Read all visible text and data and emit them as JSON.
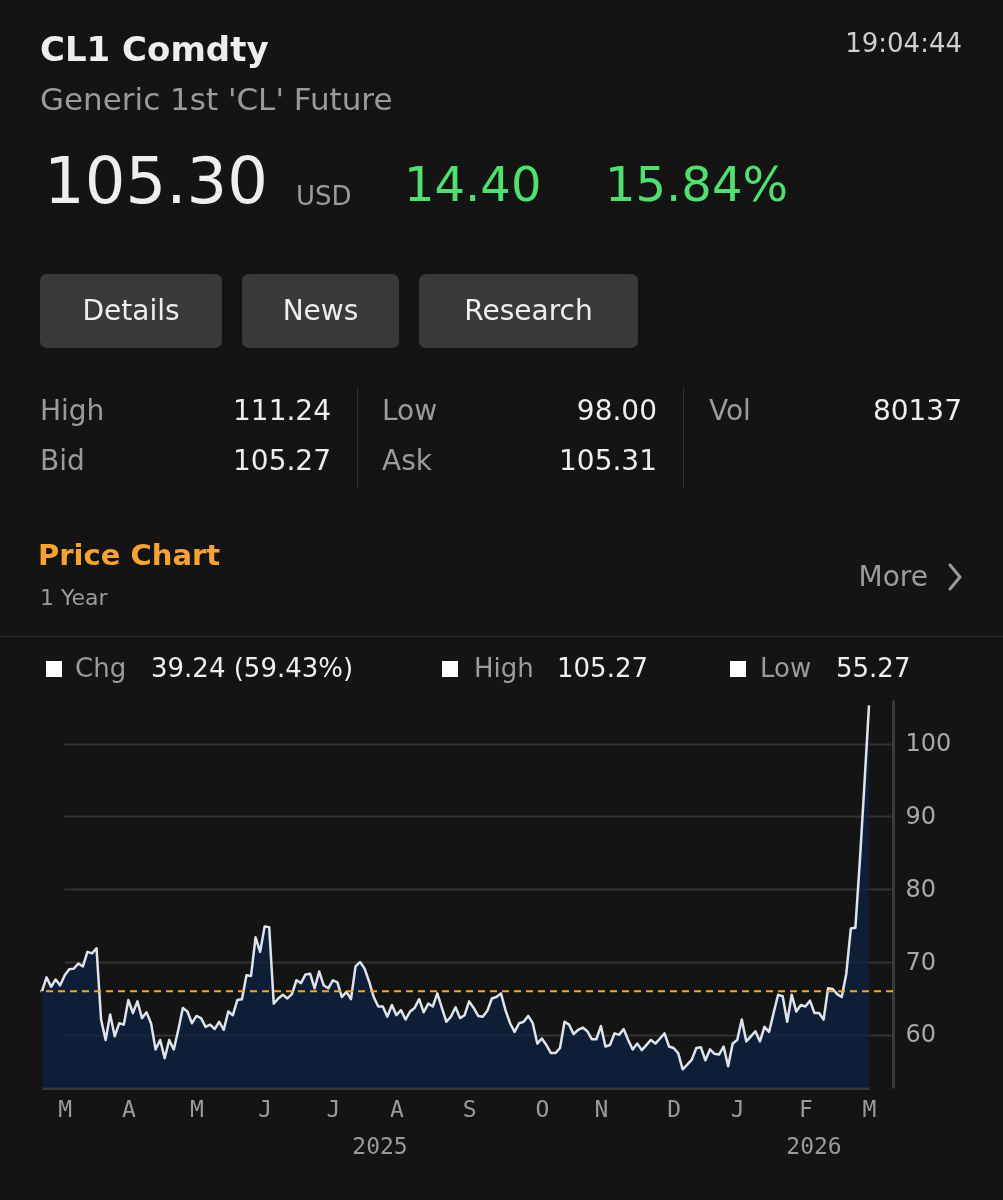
{
  "chart_data": {
    "type": "area",
    "title": "CL1 Comdty",
    "subtitle": "Generic 1st 'CL' Future",
    "annotations": [
      "19:04:44",
      "105.30",
      "USD",
      "14.40",
      "15.84%",
      "Details",
      "News",
      "Research",
      "High",
      "111.24",
      "Low",
      "98.00",
      "Vol",
      "80137",
      "Bid",
      "105.27",
      "Ask",
      "105.31",
      "Price Chart",
      "1 Year",
      "More",
      "Chg",
      "39.24 (59.43%)",
      "High",
      "105.27",
      "Low",
      "55.27",
      "2025",
      "2026"
    ],
    "categories": [
      null,
      null,
      null,
      null,
      null,
      "M",
      null,
      null,
      null,
      null,
      null,
      null,
      null,
      null,
      null,
      null,
      null,
      null,
      null,
      "A",
      null,
      null,
      null,
      null,
      null,
      null,
      null,
      null,
      null,
      null,
      null,
      null,
      null,
      null,
      "M",
      null,
      null,
      null,
      null,
      null,
      null,
      null,
      null,
      null,
      null,
      null,
      null,
      null,
      null,
      "J",
      null,
      null,
      null,
      null,
      null,
      null,
      null,
      null,
      null,
      null,
      null,
      null,
      null,
      null,
      "J",
      null,
      null,
      null,
      null,
      null,
      null,
      null,
      null,
      null,
      null,
      null,
      null,
      null,
      "A",
      null,
      null,
      null,
      null,
      null,
      null,
      null,
      null,
      null,
      null,
      null,
      null,
      null,
      null,
      null,
      "S",
      null,
      null,
      null,
      null,
      null,
      null,
      null,
      null,
      null,
      null,
      null,
      null,
      null,
      null,
      null,
      "O",
      null,
      null,
      null,
      null,
      null,
      null,
      null,
      null,
      null,
      null,
      null,
      null,
      "N",
      null,
      null,
      null,
      null,
      null,
      null,
      null,
      null,
      null,
      null,
      null,
      null,
      null,
      null,
      null,
      "D",
      null,
      null,
      null,
      null,
      null,
      null,
      null,
      null,
      null,
      null,
      null,
      null,
      null,
      "J",
      null,
      null,
      null,
      null,
      null,
      null,
      null,
      null,
      null,
      null,
      null,
      null,
      null,
      null,
      "F",
      null,
      null,
      null,
      null,
      null,
      null,
      null,
      null,
      null,
      null,
      null,
      null,
      null,
      "M"
    ],
    "series": [
      {
        "color": "#0b2246",
        "values": [
          66.0,
          67.9,
          66.6,
          67.6,
          66.8,
          68.2,
          69.0,
          69.1,
          69.8,
          69.4,
          71.4,
          71.2,
          71.9,
          62.1,
          59.3,
          62.8,
          59.8,
          61.6,
          61.4,
          64.8,
          63.0,
          64.6,
          62.3,
          63.1,
          61.6,
          58.0,
          59.3,
          56.8,
          59.3,
          58.0,
          60.7,
          63.7,
          63.2,
          61.6,
          62.6,
          62.3,
          61.1,
          61.4,
          60.8,
          61.8,
          60.7,
          63.2,
          62.7,
          64.8,
          64.9,
          68.2,
          68.1,
          73.4,
          71.4,
          74.9,
          74.8,
          64.3,
          65.0,
          65.5,
          65.0,
          65.6,
          67.5,
          67.1,
          68.3,
          68.4,
          66.4,
          68.7,
          66.8,
          66.4,
          67.5,
          67.2,
          65.2,
          65.9,
          64.9,
          69.4,
          70.0,
          69.1,
          67.3,
          65.2,
          63.9,
          63.9,
          62.5,
          64.1,
          62.7,
          63.4,
          62.1,
          63.2,
          63.7,
          64.9,
          63.1,
          64.3,
          63.9,
          65.7,
          63.7,
          61.8,
          62.5,
          63.8,
          62.3,
          62.7,
          64.6,
          63.7,
          62.6,
          62.5,
          63.3,
          65.0,
          65.2,
          65.7,
          63.4,
          61.6,
          60.4,
          61.6,
          61.8,
          62.6,
          61.6,
          58.8,
          59.5,
          58.6,
          57.5,
          57.5,
          58.2,
          61.8,
          61.4,
          60.1,
          60.7,
          61.0,
          60.5,
          59.4,
          59.4,
          61.2,
          58.4,
          58.6,
          60.2,
          60.0,
          60.8,
          59.3,
          58.0,
          58.8,
          57.9,
          58.6,
          59.3,
          58.8,
          59.5,
          60.2,
          58.4,
          58.2,
          57.5,
          55.27,
          55.9,
          56.6,
          58.2,
          58.3,
          56.5,
          58.0,
          57.4,
          57.3,
          58.4,
          55.7,
          58.8,
          59.3,
          62.1,
          59.1,
          59.8,
          60.5,
          59.1,
          61.1,
          60.4,
          63.0,
          65.5,
          65.3,
          61.8,
          65.5,
          63.2,
          64.1,
          63.9,
          64.7,
          63.0,
          63.0,
          62.1,
          66.4,
          66.3,
          65.6,
          65.2,
          68.4,
          74.6,
          74.7,
          84.0,
          94.5,
          105.27
        ]
      }
    ],
    "ylim": [
      52.7,
      106
    ],
    "yticks": [
      60,
      70,
      80,
      90,
      100
    ],
    "grid": "y",
    "ref_lines": [
      {
        "axis": "y",
        "value": 66.0,
        "color": "#f5a623",
        "line_style": "dashed"
      }
    ]
  }
}
